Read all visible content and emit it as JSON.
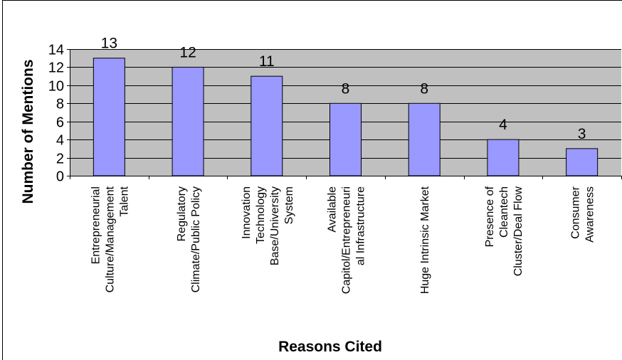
{
  "chart_data": {
    "type": "bar",
    "categories": [
      [
        "Entrepreneurial",
        "Culture/Management",
        "Talent"
      ],
      [
        "Regulatory",
        "Climate/Public Policy"
      ],
      [
        "Innovation",
        "Technology",
        "Base/University",
        "System"
      ],
      [
        "Available",
        "Capitol/Entrepreneuri",
        "al Infrastructure"
      ],
      [
        "Huge Intrinsic Market"
      ],
      [
        "Presence of",
        "Cleantech",
        "Cluster/Deal Flow"
      ],
      [
        "Consumer",
        "Awareness"
      ]
    ],
    "values": [
      13,
      12,
      11,
      8,
      8,
      4,
      3
    ],
    "data_labels": [
      "13",
      "12",
      "11",
      "8",
      "8",
      "4",
      "3"
    ],
    "xlabel": "Reasons Cited",
    "ylabel": "Number of Mentions",
    "ylim": [
      0,
      14
    ],
    "yticks": [
      "0",
      "2",
      "4",
      "6",
      "8",
      "10",
      "12",
      "14"
    ],
    "grid": true,
    "colors": {
      "plot_background": "#c0c0c0",
      "bar_fill": "#9999ff",
      "bar_stroke": "#000000",
      "grid": "#000000"
    }
  }
}
